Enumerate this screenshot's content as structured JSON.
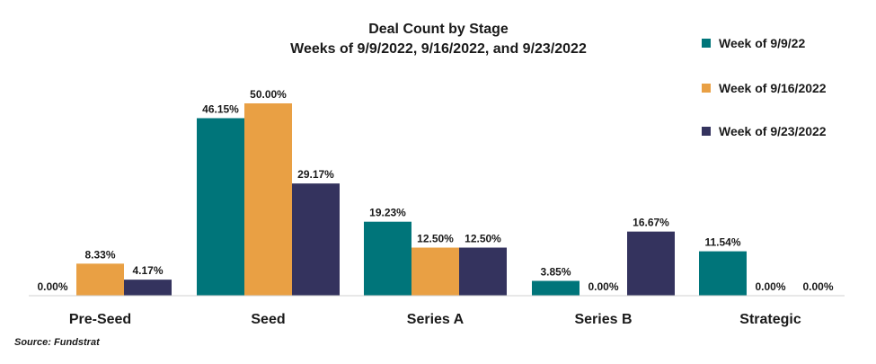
{
  "chart_data": {
    "type": "bar",
    "title": "Deal Count by Stage",
    "subtitle": "Weeks of 9/9/2022, 9/16/2022, and 9/23/2022",
    "categories": [
      "Pre-Seed",
      "Seed",
      "Series A",
      "Series B",
      "Strategic"
    ],
    "series": [
      {
        "name": "Week of 9/9/22",
        "color": "#00757a",
        "values": [
          0.0,
          46.15,
          19.23,
          3.85,
          11.54
        ],
        "labels": [
          "0.00%",
          "46.15%",
          "19.23%",
          "3.85%",
          "11.54%"
        ]
      },
      {
        "name": "Week of 9/16/2022",
        "color": "#e9a044",
        "values": [
          8.33,
          50.0,
          12.5,
          0.0,
          0.0
        ],
        "labels": [
          "8.33%",
          "50.00%",
          "12.50%",
          "0.00%",
          "0.00%"
        ]
      },
      {
        "name": "Week of 9/23/2022",
        "color": "#34335e",
        "values": [
          4.17,
          29.17,
          12.5,
          16.67,
          0.0
        ],
        "labels": [
          "4.17%",
          "29.17%",
          "12.50%",
          "16.67%",
          "0.00%"
        ]
      }
    ],
    "ylim": [
      0,
      50
    ],
    "grid": false,
    "legend": "right"
  },
  "source": "Source: Fundstrat"
}
